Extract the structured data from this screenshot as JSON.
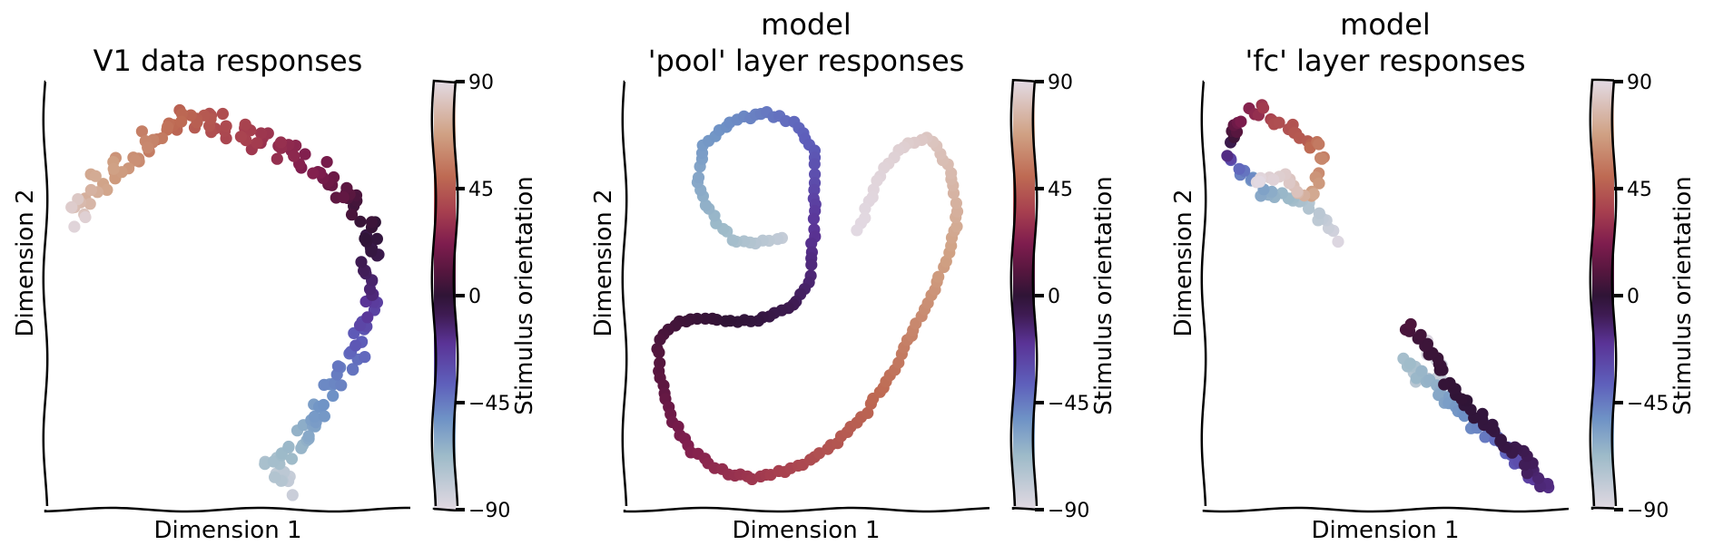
{
  "colormap": {
    "name": "twilight_shifted",
    "stops": [
      {
        "v": -90,
        "c": "#e2d9e2"
      },
      {
        "v": -67.5,
        "c": "#9ebbc9"
      },
      {
        "v": -52,
        "c": "#6f93c6"
      },
      {
        "v": -37,
        "c": "#5e5fbb"
      },
      {
        "v": -20,
        "c": "#5a3396"
      },
      {
        "v": -8,
        "c": "#3e1b52"
      },
      {
        "v": 0,
        "c": "#2f1436"
      },
      {
        "v": 10,
        "c": "#55163e"
      },
      {
        "v": 22,
        "c": "#7f1d4e"
      },
      {
        "v": 35,
        "c": "#a63e4f"
      },
      {
        "v": 50,
        "c": "#be6a53"
      },
      {
        "v": 68,
        "c": "#d0a184"
      },
      {
        "v": 90,
        "c": "#e2d9e2"
      }
    ]
  },
  "chart_data": [
    {
      "type": "scatter",
      "title_lines": [
        "V1 data responses"
      ],
      "xlabel": "Dimension 1",
      "ylabel": "Dimension 2",
      "colorbar_label": "Stimulus orientation",
      "colorbar_range": [
        -90,
        90
      ],
      "colorbar_ticks": [
        90,
        45,
        0,
        -45,
        -90
      ],
      "colorbar_tick_labels": [
        "90",
        "45",
        "0",
        "−45",
        "−90"
      ],
      "xlim": [
        0,
        100
      ],
      "ylim": [
        0,
        100
      ],
      "curve": [
        [
          68,
          2,
          -82
        ],
        [
          62,
          8,
          -72
        ],
        [
          70,
          14,
          -65
        ],
        [
          75,
          20,
          -57
        ],
        [
          80,
          27,
          -50
        ],
        [
          86,
          33,
          -42
        ],
        [
          90,
          40,
          -33
        ],
        [
          92,
          46,
          -24
        ],
        [
          91,
          52,
          -15
        ],
        [
          91,
          58,
          -8
        ],
        [
          93,
          65,
          -2
        ],
        [
          88,
          71,
          6
        ],
        [
          82,
          77,
          14
        ],
        [
          74,
          82,
          22
        ],
        [
          64,
          86,
          29
        ],
        [
          54,
          90,
          36
        ],
        [
          44,
          94,
          43
        ],
        [
          34,
          92,
          50
        ],
        [
          26,
          87,
          58
        ],
        [
          17,
          81,
          66
        ],
        [
          10,
          76,
          74
        ],
        [
          6,
          72,
          82
        ],
        [
          8,
          69,
          88
        ]
      ],
      "n_points": 190,
      "jitter": 2.8
    },
    {
      "type": "scatter",
      "title_lines": [
        "model",
        "'pool' layer responses"
      ],
      "xlabel": "Dimension 1",
      "ylabel": "Dimension 2",
      "colorbar_label": "Stimulus orientation",
      "colorbar_range": [
        -90,
        90
      ],
      "colorbar_ticks": [
        90,
        45,
        0,
        -45,
        -90
      ],
      "colorbar_tick_labels": [
        "90",
        "45",
        "0",
        "−45",
        "−90"
      ],
      "xlim": [
        0,
        100
      ],
      "ylim": [
        0,
        100
      ],
      "curve": [
        [
          43,
          64,
          -80
        ],
        [
          35,
          63,
          -75
        ],
        [
          28,
          64,
          -70
        ],
        [
          22,
          70,
          -65
        ],
        [
          18,
          78,
          -60
        ],
        [
          20,
          87,
          -55
        ],
        [
          28,
          93,
          -50
        ],
        [
          38,
          95,
          -45
        ],
        [
          46,
          93,
          -40
        ],
        [
          52,
          86,
          -35
        ],
        [
          52,
          76,
          -28
        ],
        [
          52,
          66,
          -20
        ],
        [
          51,
          55,
          -14
        ],
        [
          46,
          47,
          -8
        ],
        [
          36,
          44,
          -3
        ],
        [
          24,
          44,
          1
        ],
        [
          13,
          44,
          4
        ],
        [
          6,
          38,
          8
        ],
        [
          8,
          27,
          13
        ],
        [
          11,
          19,
          18
        ],
        [
          16,
          12,
          23
        ],
        [
          24,
          7,
          28
        ],
        [
          34,
          5,
          32
        ],
        [
          45,
          7,
          37
        ],
        [
          56,
          12,
          42
        ],
        [
          66,
          20,
          47
        ],
        [
          74,
          30,
          52
        ],
        [
          80,
          40,
          58
        ],
        [
          86,
          50,
          63
        ],
        [
          91,
          60,
          68
        ],
        [
          94,
          70,
          73
        ],
        [
          92,
          81,
          78
        ],
        [
          86,
          89,
          82
        ],
        [
          78,
          87,
          86
        ],
        [
          72,
          80,
          88
        ],
        [
          68,
          73,
          89
        ],
        [
          65,
          66,
          90
        ]
      ],
      "n_points": 190,
      "jitter": 0.5
    },
    {
      "type": "scatter",
      "title_lines": [
        "model",
        "'fc' layer responses"
      ],
      "xlabel": "Dimension 1",
      "ylabel": "Dimension 2",
      "colorbar_label": "Stimulus orientation",
      "colorbar_range": [
        -90,
        90
      ],
      "colorbar_ticks": [
        90,
        45,
        0,
        -45,
        -90
      ],
      "colorbar_tick_labels": [
        "90",
        "45",
        "0",
        "−45",
        "−90"
      ],
      "xlim": [
        0,
        100
      ],
      "ylim": [
        0,
        100
      ],
      "curve": [
        [
          62,
          38,
          -88
        ],
        [
          66,
          31,
          -82
        ],
        [
          60,
          30,
          -76
        ],
        [
          56,
          34,
          -70
        ],
        [
          64,
          28,
          -63
        ],
        [
          68,
          24,
          -57
        ],
        [
          75,
          19,
          -50
        ],
        [
          80,
          16,
          -44
        ],
        [
          85,
          12,
          -38
        ],
        [
          90,
          8,
          -30
        ],
        [
          95,
          5,
          -22
        ],
        [
          97,
          3,
          -16
        ],
        [
          92,
          8,
          -10
        ],
        [
          84,
          14,
          -4
        ],
        [
          72,
          24,
          0
        ],
        [
          60,
          40,
          4
        ],
        [
          56,
          42,
          8
        ]
      ],
      "curve2": [
        [
          36,
          64,
          -88
        ],
        [
          32,
          68,
          -80
        ],
        [
          28,
          72,
          -75
        ],
        [
          14,
          76,
          -60
        ],
        [
          8,
          80,
          -45
        ],
        [
          4,
          84,
          -30
        ],
        [
          6,
          88,
          4
        ],
        [
          7,
          92,
          14
        ],
        [
          10,
          95,
          25
        ],
        [
          14,
          96,
          32
        ],
        [
          18,
          93,
          40
        ],
        [
          26,
          88,
          45
        ],
        [
          31,
          87,
          55
        ],
        [
          30,
          80,
          62
        ],
        [
          28,
          74,
          70
        ],
        [
          24,
          76,
          80
        ],
        [
          18,
          80,
          86
        ],
        [
          12,
          78,
          90
        ]
      ],
      "n_points": 110,
      "n_points2": 80,
      "jitter": 1.4
    }
  ]
}
